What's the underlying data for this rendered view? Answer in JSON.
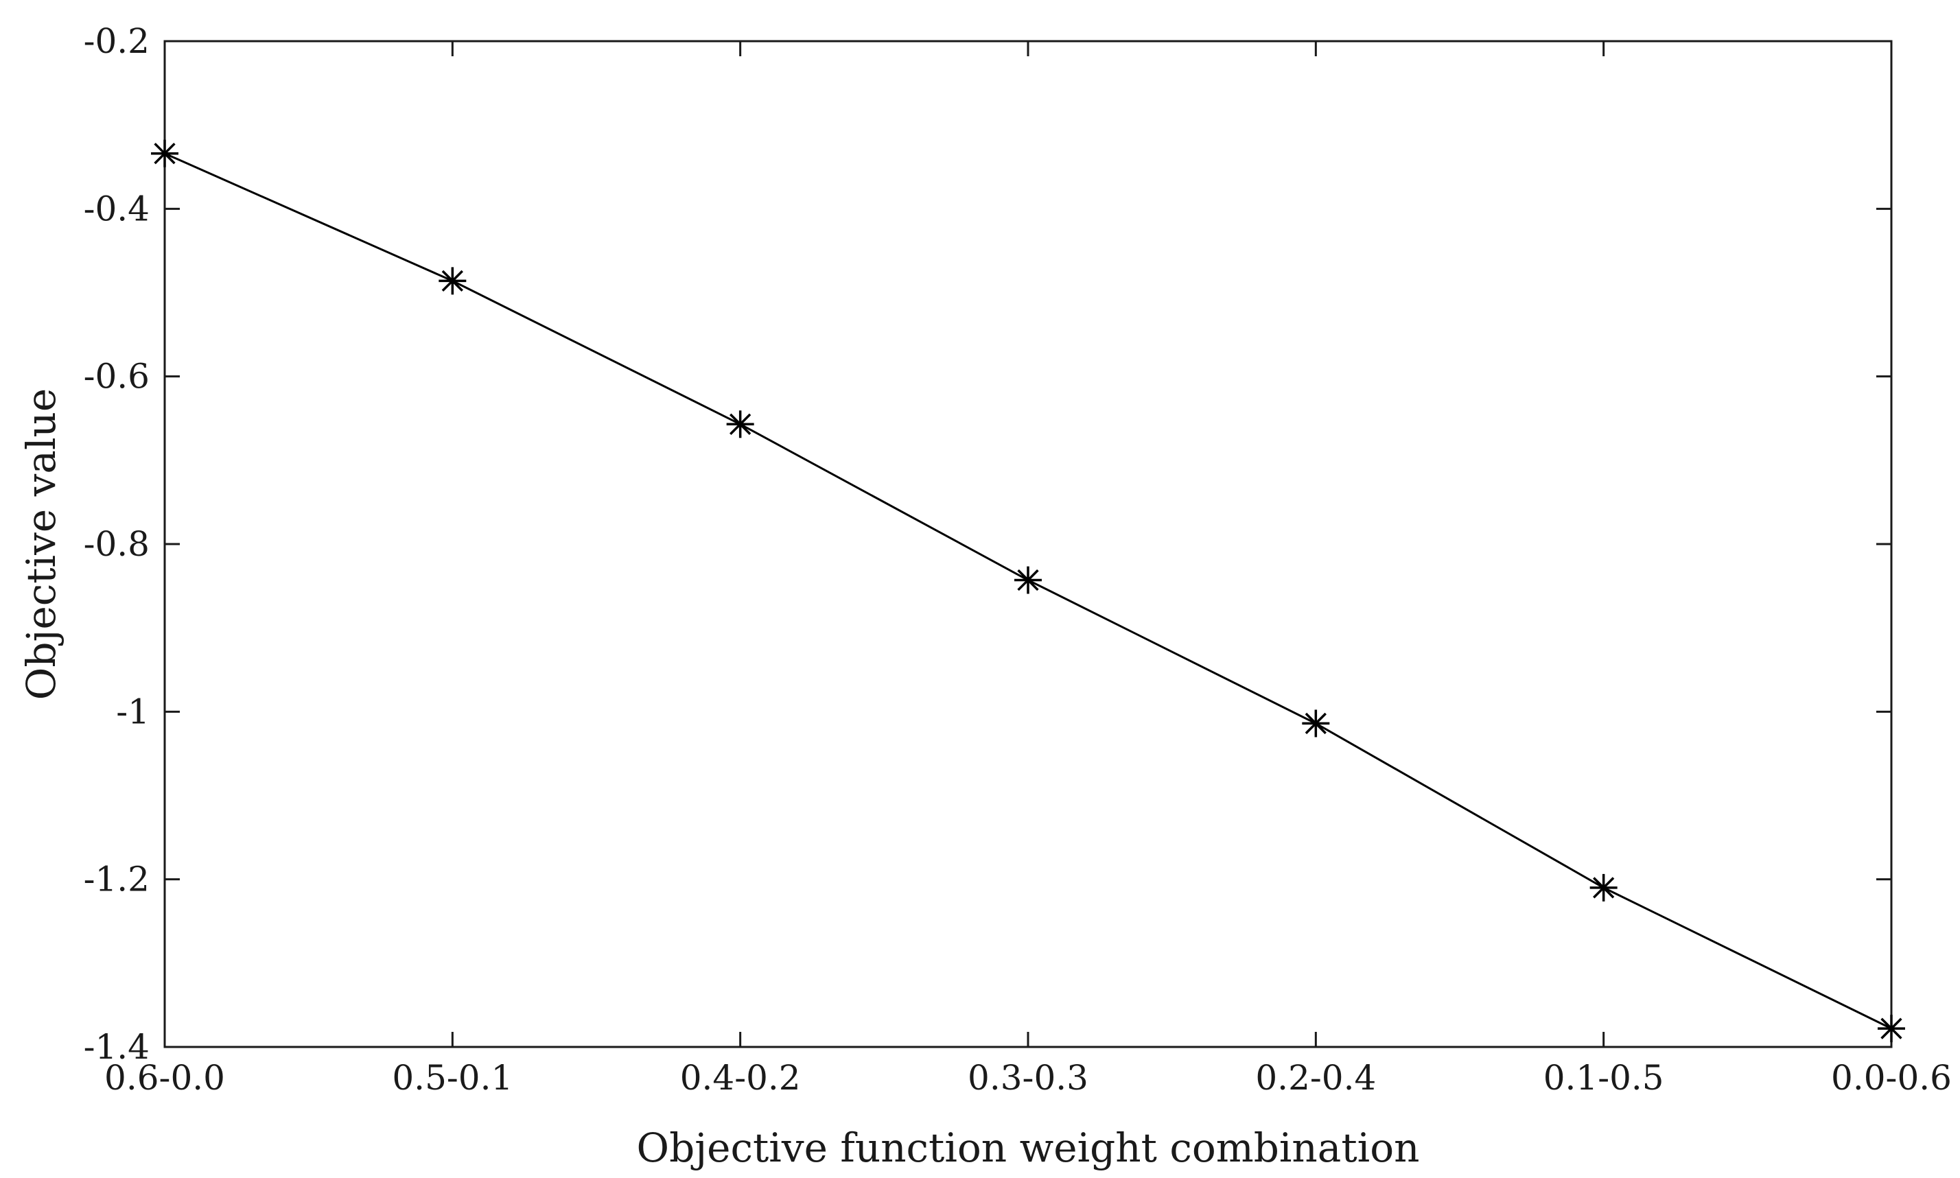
{
  "chart_data": {
    "type": "line",
    "title": "",
    "xlabel": "Objective function weight combination",
    "ylabel": "Objective value",
    "categories": [
      "0.6-0.0",
      "0.5-0.1",
      "0.4-0.2",
      "0.3-0.3",
      "0.2-0.4",
      "0.1-0.5",
      "0.0-0.6"
    ],
    "series": [
      {
        "values": [
          -0.334,
          -0.486,
          -0.657,
          -0.843,
          -1.014,
          -1.21,
          -1.378
        ],
        "marker": "asterisk",
        "color": "#000000"
      }
    ],
    "ylim": [
      -1.4,
      -0.2
    ],
    "yticks": [
      -0.2,
      -0.4,
      -0.6,
      -0.8,
      -1,
      -1.2,
      -1.4
    ],
    "ytick_labels": [
      "-0.2",
      "-0.4",
      "-0.6",
      "-0.8",
      "-1",
      "-1.2",
      "-1.4"
    ],
    "grid": false,
    "legend": "none"
  }
}
